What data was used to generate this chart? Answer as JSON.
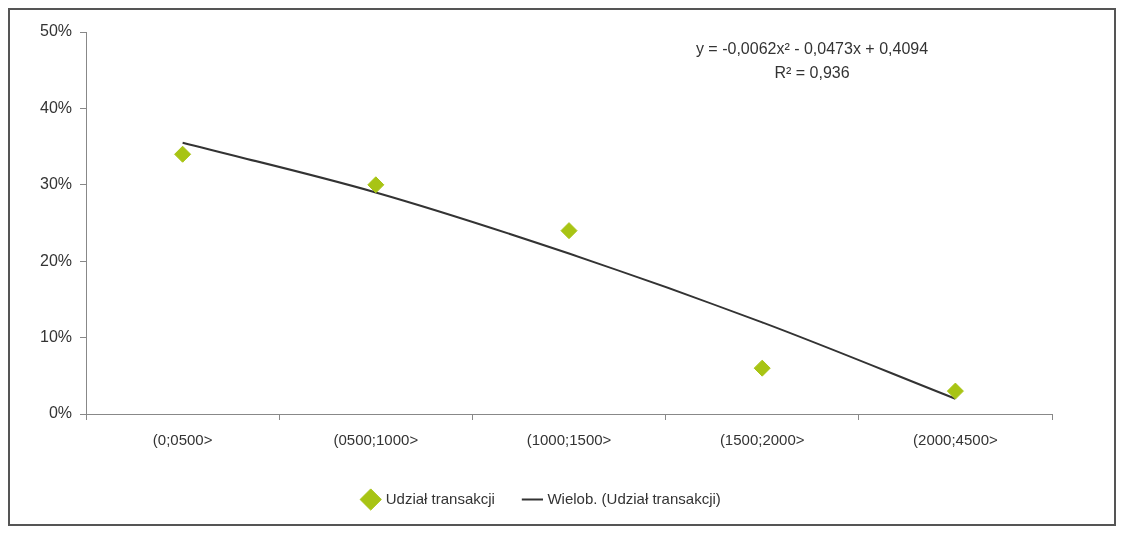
{
  "chart_data": {
    "type": "scatter",
    "categories": [
      "(0;0500>",
      "(0500;1000>",
      "(1000;1500>",
      "(1500;2000>",
      "(2000;4500>"
    ],
    "series": [
      {
        "name": "Udział transakcji",
        "color": "#a8c414",
        "marker": "diamond",
        "values": [
          0.34,
          0.3,
          0.24,
          0.06,
          0.03
        ]
      },
      {
        "name": "Wielob. (Udział transakcji)",
        "type": "line",
        "color": "#333333",
        "marker": "none",
        "line_style": "solid",
        "values": [
          0.355,
          0.29,
          0.21,
          0.12,
          0.02
        ]
      }
    ],
    "ylim": [
      0,
      0.5
    ],
    "yticks": [
      {
        "value": 0,
        "label": "0%"
      },
      {
        "value": 0.1,
        "label": "10%"
      },
      {
        "value": 0.2,
        "label": "20%"
      },
      {
        "value": 0.3,
        "label": "30%"
      },
      {
        "value": 0.4,
        "label": "40%"
      },
      {
        "value": 0.5,
        "label": "50%"
      }
    ],
    "grid": false,
    "legend": "bottom",
    "annotations": [
      "y = -0,0062x² - 0,0473x + 0,4094",
      "R² = 0,936"
    ]
  }
}
